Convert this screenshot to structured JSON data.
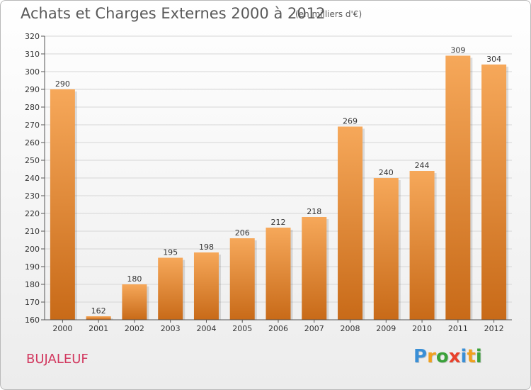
{
  "header": {
    "title": "Achats et Charges Externes 2000 à 2012",
    "subtitle": "(en milliers d'€)"
  },
  "location": "BUJALEUF",
  "logo": {
    "letters": [
      "P",
      "r",
      "o",
      "x",
      "i",
      "t",
      "i"
    ],
    "colors": [
      "#3a8fd6",
      "#f0a01e",
      "#3aa13a",
      "#e8412c",
      "#3a8fd6",
      "#f0a01e",
      "#3aa13a"
    ]
  },
  "chart_data": {
    "type": "bar",
    "title": "Achats et Charges Externes 2000 à 2012",
    "subtitle": "(en milliers d'€)",
    "categories": [
      "2000",
      "2001",
      "2002",
      "2003",
      "2004",
      "2005",
      "2006",
      "2007",
      "2008",
      "2009",
      "2010",
      "2011",
      "2012"
    ],
    "values": [
      290,
      162,
      180,
      195,
      198,
      206,
      212,
      218,
      269,
      240,
      244,
      309,
      304
    ],
    "ylim": [
      160,
      320
    ],
    "yticks": [
      160,
      170,
      180,
      190,
      200,
      210,
      220,
      230,
      240,
      250,
      260,
      270,
      280,
      290,
      300,
      310,
      320
    ],
    "grid": true,
    "bar_color_top": "#f6a85a",
    "bar_color_bottom": "#c86a18"
  }
}
